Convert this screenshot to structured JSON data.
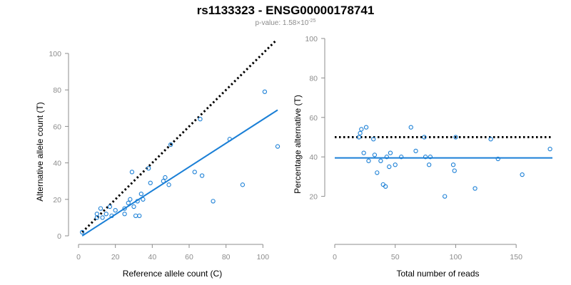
{
  "title": "rs1133323 - ENSG00000178741",
  "subtitle": {
    "prefix": "p-value: 1.58×10",
    "exponent": "-25"
  },
  "colors": {
    "points": "#1a7fd6",
    "fit": "#1a7fd6",
    "reference": "#000000",
    "axis": "#8c8c8c"
  },
  "chart_data": [
    {
      "type": "scatter",
      "xlabel": "Reference allele count (C)",
      "ylabel": "Alternative allele count (T)",
      "xlim": [
        0,
        108
      ],
      "ylim": [
        0,
        100
      ],
      "xticks": [
        0,
        20,
        40,
        60,
        80,
        100
      ],
      "yticks": [
        0,
        20,
        40,
        60,
        80,
        100
      ],
      "points": [
        [
          2,
          2
        ],
        [
          10,
          10
        ],
        [
          10,
          12
        ],
        [
          12,
          15
        ],
        [
          13,
          10
        ],
        [
          15,
          12
        ],
        [
          17,
          16
        ],
        [
          18,
          11
        ],
        [
          20,
          14
        ],
        [
          25,
          12
        ],
        [
          25,
          15
        ],
        [
          27,
          18
        ],
        [
          28,
          20
        ],
        [
          29,
          35
        ],
        [
          30,
          16
        ],
        [
          31,
          11
        ],
        [
          32,
          19
        ],
        [
          33,
          11
        ],
        [
          34,
          23
        ],
        [
          35,
          20
        ],
        [
          38,
          37
        ],
        [
          39,
          29
        ],
        [
          46,
          30
        ],
        [
          47,
          32
        ],
        [
          49,
          28
        ],
        [
          50,
          50
        ],
        [
          63,
          35
        ],
        [
          66,
          64
        ],
        [
          67,
          33
        ],
        [
          73,
          19
        ],
        [
          82,
          53
        ],
        [
          89,
          28
        ],
        [
          101,
          79
        ],
        [
          108,
          49
        ]
      ],
      "reference_line": {
        "name": "y = x",
        "style": "dotted",
        "from": [
          2,
          2
        ],
        "to": [
          107,
          107
        ]
      },
      "fit_line": {
        "name": "fit",
        "from": [
          2,
          0
        ],
        "to": [
          108,
          69
        ]
      }
    },
    {
      "type": "scatter",
      "xlabel": "Total number of reads",
      "ylabel": "Percentage alternative (T)",
      "xlim": [
        0,
        180
      ],
      "ylim": [
        0,
        100
      ],
      "xticks": [
        0,
        50,
        100,
        150
      ],
      "yticks": [
        20,
        40,
        60,
        80,
        100
      ],
      "points": [
        [
          20,
          50
        ],
        [
          21,
          52
        ],
        [
          22,
          54
        ],
        [
          24,
          42
        ],
        [
          26,
          55
        ],
        [
          28,
          38
        ],
        [
          32,
          49
        ],
        [
          33,
          41
        ],
        [
          35,
          32
        ],
        [
          38,
          38
        ],
        [
          40,
          26
        ],
        [
          42,
          25
        ],
        [
          43,
          40
        ],
        [
          45,
          35
        ],
        [
          46,
          42
        ],
        [
          50,
          36
        ],
        [
          55,
          40
        ],
        [
          63,
          55
        ],
        [
          67,
          43
        ],
        [
          74,
          50
        ],
        [
          75,
          40
        ],
        [
          78,
          36
        ],
        [
          79,
          40
        ],
        [
          91,
          20
        ],
        [
          98,
          36
        ],
        [
          99,
          33
        ],
        [
          100,
          50
        ],
        [
          116,
          24
        ],
        [
          129,
          49
        ],
        [
          135,
          39
        ],
        [
          155,
          31
        ],
        [
          178,
          44
        ]
      ],
      "reference_line": {
        "name": "50%",
        "style": "dotted",
        "y": 50
      },
      "fit_line": {
        "name": "mean",
        "y": 39.5
      }
    }
  ]
}
